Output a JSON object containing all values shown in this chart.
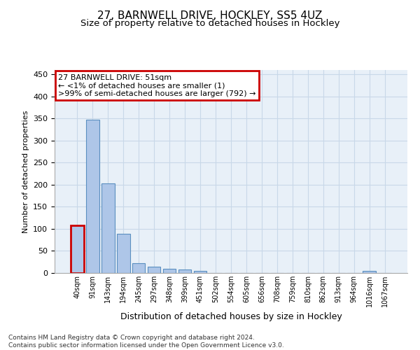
{
  "title_line1": "27, BARNWELL DRIVE, HOCKLEY, SS5 4UZ",
  "title_line2": "Size of property relative to detached houses in Hockley",
  "xlabel": "Distribution of detached houses by size in Hockley",
  "ylabel": "Number of detached properties",
  "footer_line1": "Contains HM Land Registry data © Crown copyright and database right 2024.",
  "footer_line2": "Contains public sector information licensed under the Open Government Licence v3.0.",
  "categories": [
    "40sqm",
    "91sqm",
    "143sqm",
    "194sqm",
    "245sqm",
    "297sqm",
    "348sqm",
    "399sqm",
    "451sqm",
    "502sqm",
    "554sqm",
    "605sqm",
    "656sqm",
    "708sqm",
    "759sqm",
    "810sqm",
    "862sqm",
    "913sqm",
    "964sqm",
    "1016sqm",
    "1067sqm"
  ],
  "bar_values": [
    108,
    348,
    203,
    89,
    23,
    14,
    9,
    8,
    5,
    0,
    0,
    0,
    0,
    0,
    0,
    0,
    0,
    0,
    0,
    4,
    0
  ],
  "bar_color": "#aec6e8",
  "bar_edge_color": "#5a8fc0",
  "highlight_bar_index": 0,
  "highlight_color": "#cc0000",
  "annotation_line1": "27 BARNWELL DRIVE: 51sqm",
  "annotation_line2": "← <1% of detached houses are smaller (1)",
  "annotation_line3": ">99% of semi-detached houses are larger (792) →",
  "annotation_box_color": "#cc0000",
  "annotation_box_fill": "#ffffff",
  "ylim": [
    0,
    460
  ],
  "yticks": [
    0,
    50,
    100,
    150,
    200,
    250,
    300,
    350,
    400,
    450
  ],
  "grid_color": "#c8d8e8",
  "bg_color": "#e8f0f8",
  "title_fontsize": 11,
  "subtitle_fontsize": 9.5,
  "footer_fontsize": 6.5
}
